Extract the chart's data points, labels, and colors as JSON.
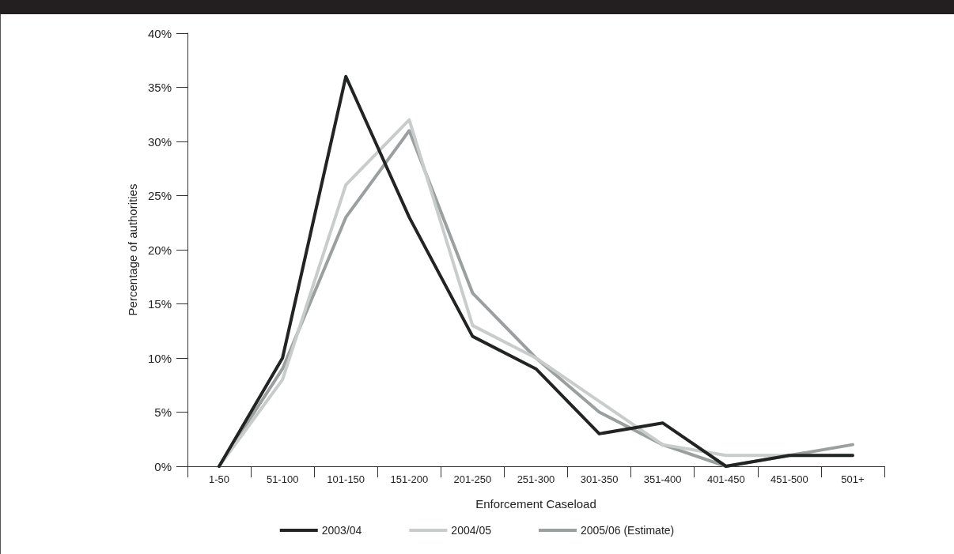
{
  "chart_data": {
    "type": "line",
    "xlabel": "Enforcement Caseload",
    "ylabel": "Percentage of authorities",
    "categories": [
      "1-50",
      "51-100",
      "101-150",
      "151-200",
      "201-250",
      "251-300",
      "301-350",
      "351-400",
      "401-450",
      "451-500",
      "501+"
    ],
    "series": [
      {
        "name": "2003/04",
        "color": "#222423",
        "values": [
          0,
          10,
          36,
          23,
          12,
          9,
          3,
          4,
          0,
          1,
          1
        ]
      },
      {
        "name": "2004/05",
        "color": "#c8cdcc",
        "values": [
          0,
          8,
          26,
          32,
          13,
          10,
          6,
          2,
          1,
          1,
          1
        ]
      },
      {
        "name": "2005/06 (Estimate)",
        "color": "#9a9fa0",
        "values": [
          0,
          9,
          23,
          31,
          16,
          10,
          5,
          2,
          0,
          1,
          2
        ]
      }
    ],
    "ylim": [
      0,
      40
    ],
    "yticks": [
      {
        "value": 0,
        "label": "0%"
      },
      {
        "value": 5,
        "label": "5%"
      },
      {
        "value": 10,
        "label": "10%"
      },
      {
        "value": 15,
        "label": "15%"
      },
      {
        "value": 20,
        "label": "20%"
      },
      {
        "value": 25,
        "label": "25%"
      },
      {
        "value": 30,
        "label": "30%"
      },
      {
        "value": 35,
        "label": "35%"
      },
      {
        "value": 40,
        "label": "40%"
      }
    ],
    "grid": false,
    "legend": "bottom",
    "marker": "none",
    "line_style": "solid"
  }
}
